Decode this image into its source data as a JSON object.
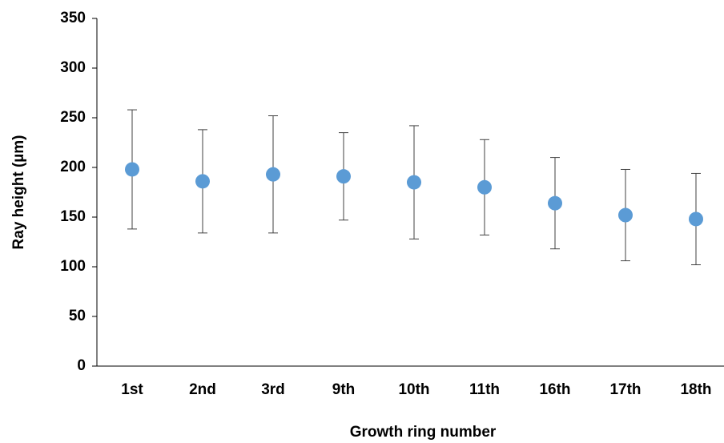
{
  "chart_data": {
    "type": "scatter",
    "x_label": "Growth ring number",
    "y_label": "Ray height (µm)",
    "categories": [
      "1st",
      "2nd",
      "3rd",
      "9th",
      "10th",
      "11th",
      "16th",
      "17th",
      "18th"
    ],
    "values": [
      198,
      186,
      193,
      191,
      185,
      180,
      164,
      152,
      148
    ],
    "errors": [
      60,
      52,
      59,
      44,
      57,
      48,
      46,
      46,
      46
    ],
    "color": "#5b9bd5",
    "ylim": [
      0,
      350
    ],
    "yticks": [
      0,
      50,
      100,
      150,
      200,
      250,
      300,
      350
    ]
  }
}
